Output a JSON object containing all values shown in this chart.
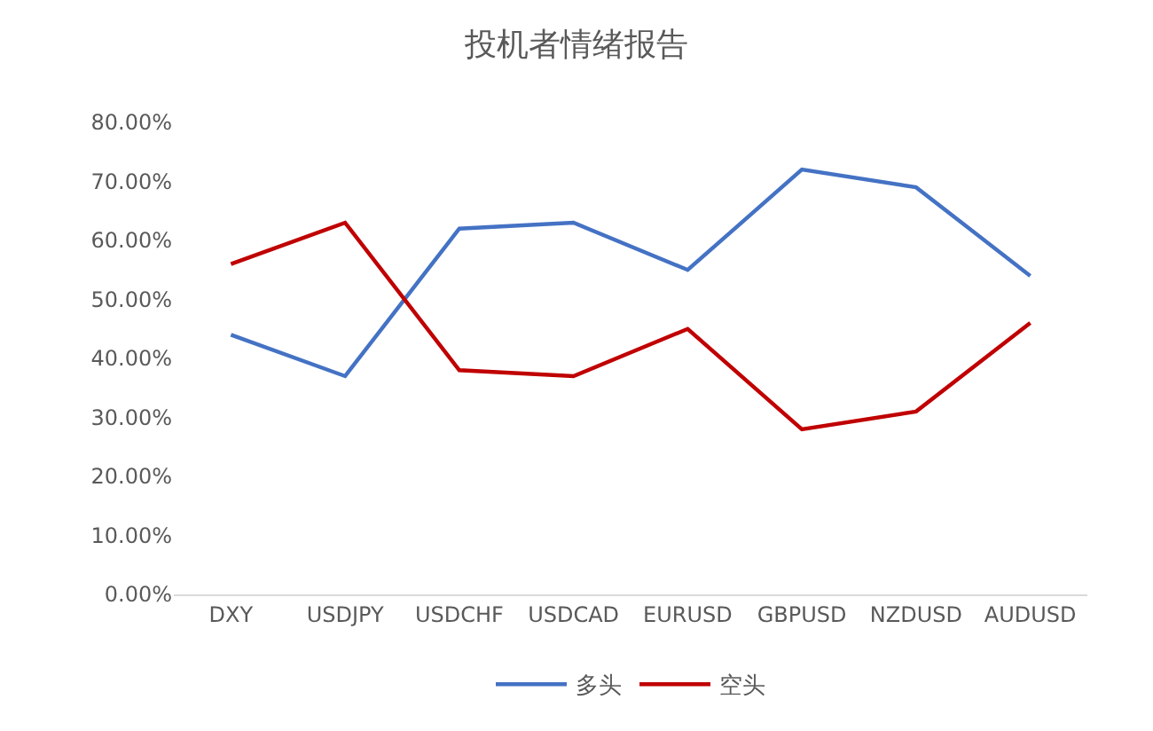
{
  "chart_data": {
    "type": "line",
    "title": "投机者情绪报告",
    "categories": [
      "DXY",
      "USDJPY",
      "USDCHF",
      "USDCAD",
      "EURUSD",
      "GBPUSD",
      "NZDUSD",
      "AUDUSD"
    ],
    "series": [
      {
        "name": "多头",
        "color": "#4472c4",
        "values": [
          44,
          37,
          62,
          63,
          55,
          72,
          69,
          54
        ]
      },
      {
        "name": "空头",
        "color": "#c00000",
        "values": [
          56,
          63,
          38,
          37,
          45,
          28,
          31,
          46
        ]
      }
    ],
    "ylim": [
      0,
      80
    ],
    "yticks": [
      {
        "value": 0,
        "label": "0.00%"
      },
      {
        "value": 10,
        "label": "10.00%"
      },
      {
        "value": 20,
        "label": "20.00%"
      },
      {
        "value": 30,
        "label": "30.00%"
      },
      {
        "value": 40,
        "label": "40.00%"
      },
      {
        "value": 50,
        "label": "50.00%"
      },
      {
        "value": 60,
        "label": "60.00%"
      },
      {
        "value": 70,
        "label": "70.00%"
      },
      {
        "value": 80,
        "label": "80.00%"
      }
    ],
    "grid": false,
    "legend": "bottom",
    "marker": "none",
    "line_style": "solid"
  }
}
